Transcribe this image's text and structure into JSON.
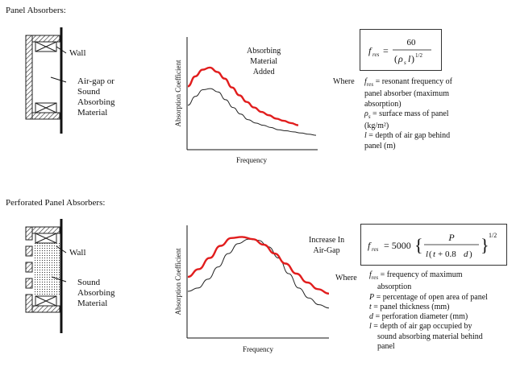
{
  "colors": {
    "ink": "#111111",
    "accent": "#e11d1d",
    "curve": "#222222"
  },
  "panel": {
    "heading": "Panel Absorbers:",
    "wall_label": "Wall",
    "gap_label_lines": [
      "Air-gap or",
      "Sound",
      "Absorbing",
      "Material"
    ],
    "curve_label_lines": [
      "Absorbing",
      "Material",
      "Added"
    ],
    "where": "Where",
    "definitions": [
      [
        "f_res = resonant frequency of",
        "panel absorber (maximum",
        "absorption)"
      ],
      [
        "ρs = surface mass of panel",
        "(kg/m²)"
      ],
      [
        "l = depth of air gap behind",
        "panel (m)"
      ]
    ]
  },
  "perforated": {
    "heading": "Perforated Panel Absorbers:",
    "wall_label": "Wall",
    "material_label_lines": [
      "Sound",
      "Absorbing",
      "Material"
    ],
    "curve_label_lines": [
      "Increase In",
      "Air-Gap"
    ],
    "where": "Where",
    "definitions": [
      [
        "f_res = frequency of maximum",
        "absorption"
      ],
      [
        "P = percentage of open area of panel"
      ],
      [
        "t = panel thickness (mm)"
      ],
      [
        "d = perforation diameter (mm)"
      ],
      [
        "l = depth of air gap occupied by",
        "sound absorbing material behind",
        "panel"
      ]
    ]
  },
  "chart_data": [
    {
      "type": "line",
      "xlabel": "Frequency",
      "ylabel": "Absorption Coefficient",
      "series": [
        {
          "values": [
            0.4,
            0.48,
            0.54,
            0.55,
            0.52,
            0.45,
            0.38,
            0.32,
            0.27,
            0.24,
            0.22,
            0.2,
            0.18,
            0.17,
            0.16,
            0.15,
            0.14,
            0.13
          ]
        },
        {
          "values": [
            0.57,
            0.66,
            0.72,
            0.74,
            0.7,
            0.64,
            0.56,
            0.49,
            0.43,
            0.38,
            0.34,
            0.31,
            0.28,
            0.26,
            0.24,
            0.22
          ]
        }
      ]
    },
    {
      "type": "line",
      "xlabel": "Frequency",
      "ylabel": "Absorption Coefficient",
      "series": [
        {
          "values": [
            0.42,
            0.45,
            0.53,
            0.64,
            0.76,
            0.85,
            0.89,
            0.88,
            0.82,
            0.72,
            0.58,
            0.45,
            0.36,
            0.3,
            0.27
          ]
        },
        {
          "values": [
            0.55,
            0.62,
            0.72,
            0.83,
            0.9,
            0.91,
            0.89,
            0.84,
            0.76,
            0.67,
            0.58,
            0.5,
            0.44,
            0.4
          ]
        }
      ]
    }
  ]
}
